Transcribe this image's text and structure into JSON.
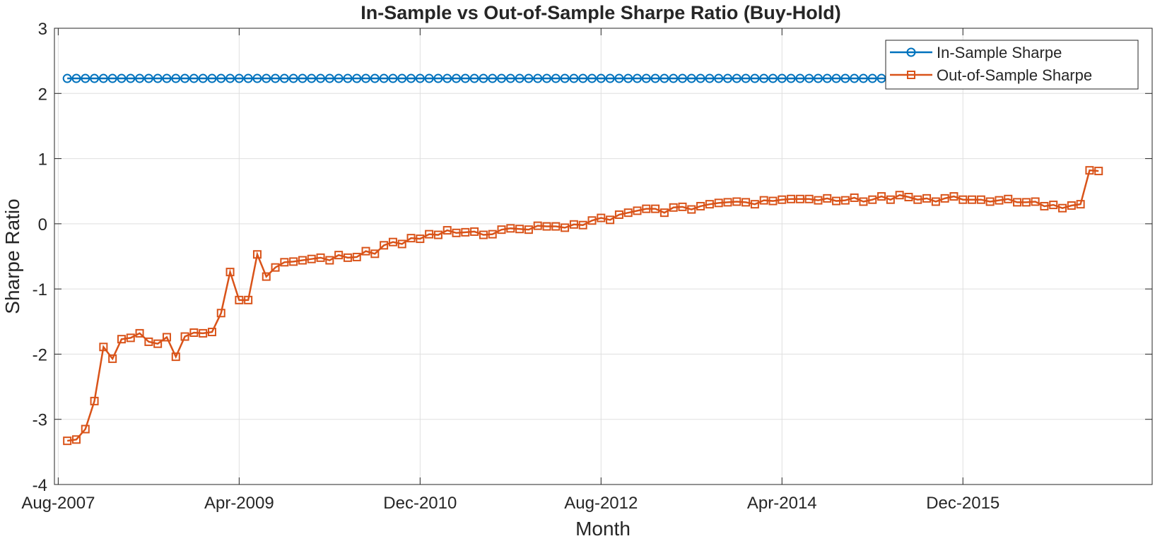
{
  "colors": {
    "in_sample": "#0072BD",
    "out_of_sample": "#D95319",
    "axis": "#262626",
    "grid": "#dfdfdf"
  },
  "chart_data": {
    "type": "line",
    "title": "In-Sample vs Out-of-Sample Sharpe Ratio (Buy-Hold)",
    "xlabel": "Month",
    "ylabel": "Sharpe Ratio",
    "ylim": [
      -4,
      3
    ],
    "yticks": [
      -4,
      -3,
      -2,
      -1,
      0,
      1,
      2,
      3
    ],
    "x_start": "Sep-2007",
    "x_count": 118,
    "xlim": [
      "Jul-2007",
      "Sep-2017"
    ],
    "xticks": [
      "Aug-2007",
      "Apr-2009",
      "Dec-2010",
      "Aug-2012",
      "Apr-2014",
      "Dec-2015"
    ],
    "grid": true,
    "legend": "top-right",
    "series": [
      {
        "name": "In-Sample Sharpe",
        "marker": "circle",
        "constant_value": 2.23,
        "count": 92
      },
      {
        "name": "Out-of-Sample Sharpe",
        "marker": "square",
        "values": [
          -3.33,
          -3.31,
          -3.15,
          -2.72,
          -1.89,
          -2.07,
          -1.77,
          -1.75,
          -1.68,
          -1.81,
          -1.84,
          -1.74,
          -2.04,
          -1.73,
          -1.67,
          -1.68,
          -1.66,
          -1.37,
          -0.74,
          -1.17,
          -1.17,
          -0.47,
          -0.81,
          -0.67,
          -0.59,
          -0.58,
          -0.56,
          -0.54,
          -0.52,
          -0.56,
          -0.48,
          -0.52,
          -0.51,
          -0.42,
          -0.46,
          -0.33,
          -0.28,
          -0.31,
          -0.22,
          -0.23,
          -0.16,
          -0.17,
          -0.1,
          -0.14,
          -0.13,
          -0.12,
          -0.17,
          -0.16,
          -0.09,
          -0.07,
          -0.08,
          -0.09,
          -0.03,
          -0.04,
          -0.04,
          -0.06,
          -0.01,
          -0.02,
          0.05,
          0.09,
          0.06,
          0.14,
          0.17,
          0.2,
          0.23,
          0.23,
          0.17,
          0.25,
          0.26,
          0.22,
          0.27,
          0.3,
          0.32,
          0.33,
          0.34,
          0.33,
          0.3,
          0.36,
          0.35,
          0.37,
          0.38,
          0.38,
          0.38,
          0.36,
          0.39,
          0.35,
          0.36,
          0.4,
          0.34,
          0.37,
          0.42,
          0.37,
          0.44,
          0.41,
          0.37,
          0.39,
          0.34,
          0.39,
          0.42,
          0.37,
          0.37,
          0.37,
          0.34,
          0.36,
          0.38,
          0.33,
          0.33,
          0.34,
          0.27,
          0.29,
          0.24,
          0.28,
          0.3,
          0.82,
          0.81
        ]
      }
    ]
  }
}
